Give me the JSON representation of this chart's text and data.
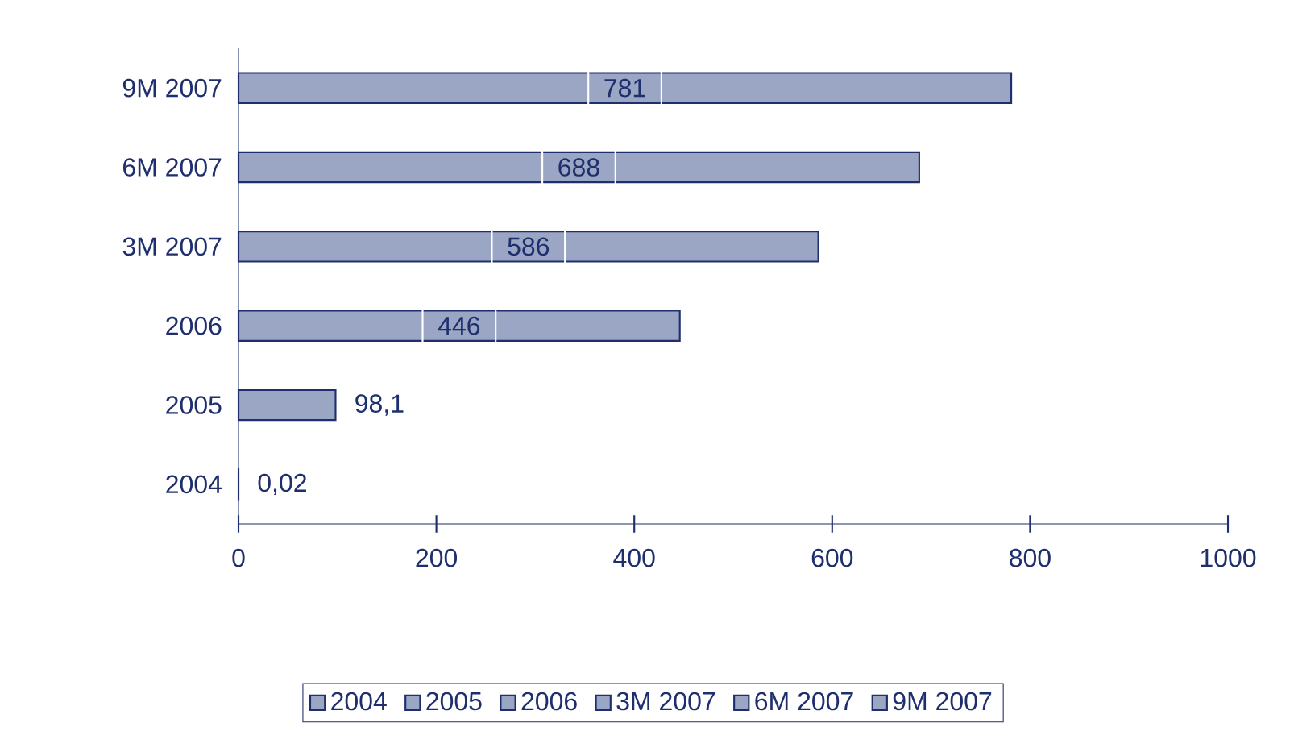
{
  "chart_data": {
    "type": "bar",
    "orientation": "horizontal",
    "categories": [
      "9M 2007",
      "6M 2007",
      "3M 2007",
      "2006",
      "2005",
      "2004"
    ],
    "series": [
      {
        "name": "2004",
        "color": "#9aa6c4",
        "values": [
          null,
          null,
          null,
          null,
          null,
          0.02
        ],
        "value_labels": [
          null,
          null,
          null,
          null,
          null,
          "0,02"
        ]
      },
      {
        "name": "2005",
        "color": "#9aa6c4",
        "values": [
          null,
          null,
          null,
          null,
          98.1,
          null
        ],
        "value_labels": [
          null,
          null,
          null,
          null,
          "98,1",
          null
        ]
      },
      {
        "name": "2006",
        "color": "#9aa6c4",
        "values": [
          null,
          null,
          null,
          446,
          null,
          null
        ],
        "value_labels": [
          null,
          null,
          null,
          "446",
          null,
          null
        ]
      },
      {
        "name": "3M 2007",
        "color": "#9aa6c4",
        "values": [
          null,
          null,
          586,
          null,
          null,
          null
        ],
        "value_labels": [
          null,
          null,
          "586",
          null,
          null,
          null
        ]
      },
      {
        "name": "6M 2007",
        "color": "#9aa6c4",
        "values": [
          null,
          688,
          null,
          null,
          null,
          null
        ],
        "value_labels": [
          null,
          "688",
          null,
          null,
          null,
          null
        ]
      },
      {
        "name": "9M 2007",
        "color": "#9aa6c4",
        "values": [
          781,
          null,
          null,
          null,
          null,
          null
        ],
        "value_labels": [
          "781",
          null,
          null,
          null,
          null,
          null
        ]
      }
    ],
    "xlim": [
      0,
      1000
    ],
    "xticks": [
      0,
      200,
      400,
      600,
      800,
      1000
    ],
    "grid": false,
    "legend": "bottom"
  }
}
